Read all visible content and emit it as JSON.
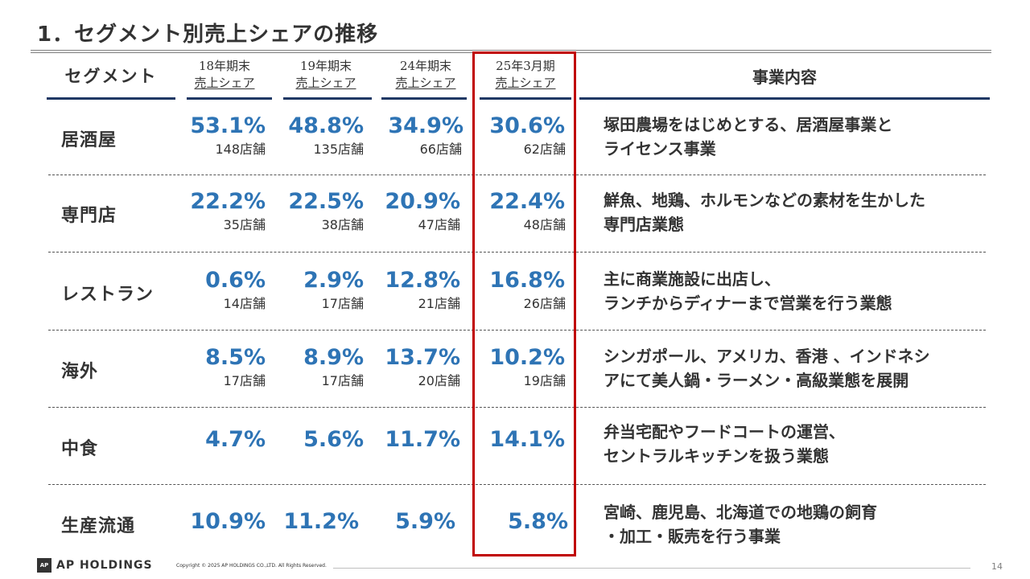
{
  "title": "1．セグメント別売上シェアの推移",
  "header": {
    "segment": "セグメント",
    "cols": [
      {
        "line1": "18年期末",
        "line2": "売上シェア"
      },
      {
        "line1": "19年期末",
        "line2": "売上シェア"
      },
      {
        "line1": "24年期末",
        "line2": "売上シェア"
      },
      {
        "line1": "25年3月期",
        "line2": "売上シェア"
      }
    ],
    "business": "事業内容"
  },
  "rows": [
    {
      "segment": "居酒屋",
      "cells": [
        {
          "pct": "53.1%",
          "stores": "148店舗"
        },
        {
          "pct": "48.8%",
          "stores": "135店舗"
        },
        {
          "pct": "34.9%",
          "stores": "66店舗"
        },
        {
          "pct": "30.6%",
          "stores": "62店舗"
        }
      ],
      "business": [
        "塚田農場をはじめとする、居酒屋事業と",
        "ライセンス事業"
      ]
    },
    {
      "segment": "専門店",
      "cells": [
        {
          "pct": "22.2%",
          "stores": "35店舗"
        },
        {
          "pct": "22.5%",
          "stores": "38店舗"
        },
        {
          "pct": "20.9%",
          "stores": "47店舗"
        },
        {
          "pct": "22.4%",
          "stores": "48店舗"
        }
      ],
      "business": [
        "鮮魚、地鶏、ホルモンなどの素材を生かした",
        "専門店業態"
      ]
    },
    {
      "segment": "レストラン",
      "cells": [
        {
          "pct": "0.6%",
          "stores": "14店舗"
        },
        {
          "pct": "2.9%",
          "stores": "17店舗"
        },
        {
          "pct": "12.8%",
          "stores": "21店舗"
        },
        {
          "pct": "16.8%",
          "stores": "26店舗"
        }
      ],
      "business": [
        "主に商業施設に出店し、",
        "ランチからディナーまで営業を行う業態"
      ]
    },
    {
      "segment": "海外",
      "cells": [
        {
          "pct": "8.5%",
          "stores": "17店舗"
        },
        {
          "pct": "8.9%",
          "stores": "17店舗"
        },
        {
          "pct": "13.7%",
          "stores": "20店舗"
        },
        {
          "pct": "10.2%",
          "stores": "19店舗"
        }
      ],
      "business": [
        "シンガポール、アメリカ、香港 、インドネシ",
        "アにて美人鍋・ラーメン・高級業態を展開"
      ]
    },
    {
      "segment": "中食",
      "cells": [
        {
          "pct": "4.7%",
          "stores": ""
        },
        {
          "pct": "5.6%",
          "stores": ""
        },
        {
          "pct": "11.7%",
          "stores": ""
        },
        {
          "pct": "14.1%",
          "stores": ""
        }
      ],
      "business": [
        "弁当宅配やフードコートの運営、",
        "セントラルキッチンを扱う業態"
      ]
    },
    {
      "segment": "生産流通",
      "cells": [
        {
          "pct": "10.9%",
          "stores": ""
        },
        {
          "pct": "11.2%",
          "stores": ""
        },
        {
          "pct": "5.9%",
          "stores": ""
        },
        {
          "pct": "5.8%",
          "stores": ""
        }
      ],
      "business": [
        "宮崎、鹿児島、北海道での地鶏の飼育",
        "・加工・販売を行う事業"
      ]
    }
  ],
  "footer": {
    "logo_mark": "AP",
    "logo_text": "AP HOLDINGS",
    "copyright": "Copyright © 2025 AP HOLDINGS CO.,LTD.  All Rights Reserved.",
    "page_number": "14"
  },
  "colors": {
    "accent_blue": "#2e74b5",
    "header_rule": "#1f3864",
    "highlight_red": "#c00000"
  }
}
